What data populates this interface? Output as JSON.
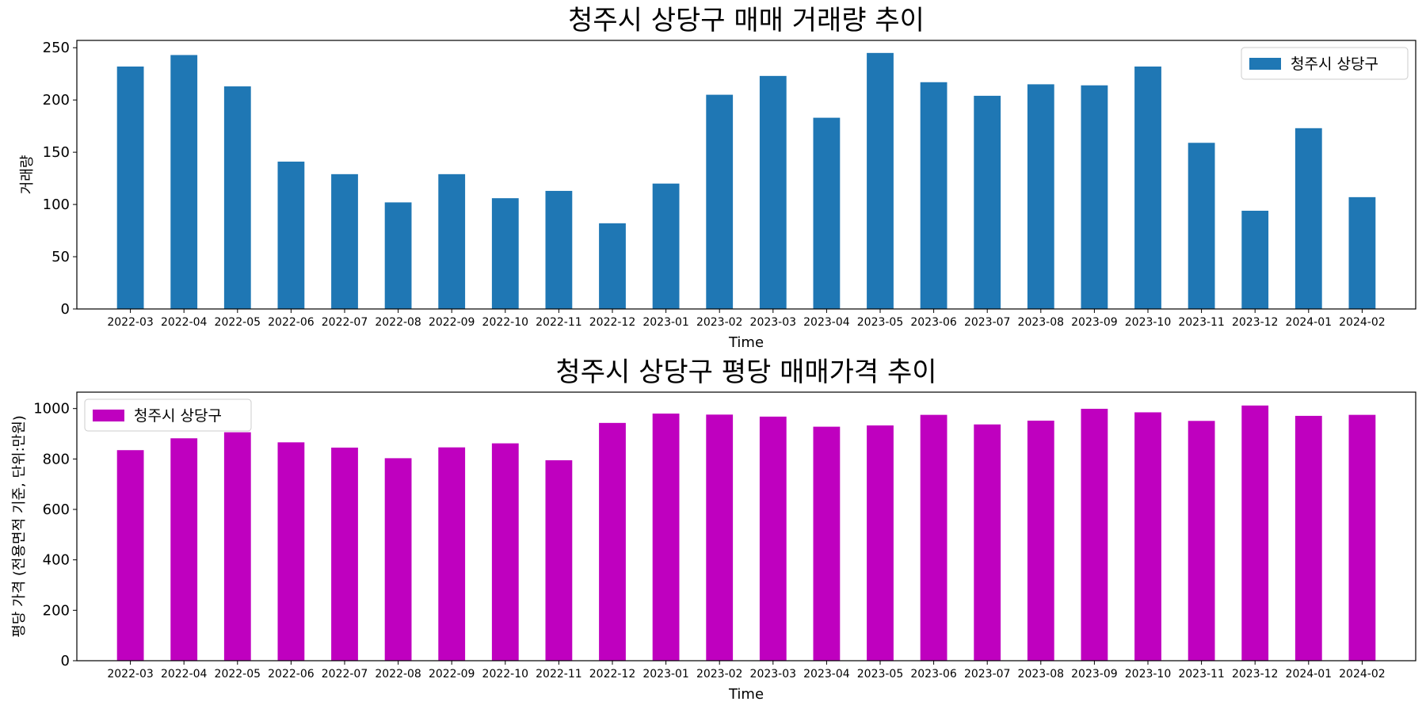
{
  "chart_data": [
    {
      "type": "bar",
      "title": "청주시 상당구 매매 거래량 추이",
      "xlabel": "Time",
      "ylabel": "거래량",
      "ylim": [
        0,
        257
      ],
      "yticks": [
        0,
        50,
        100,
        150,
        200,
        250
      ],
      "categories": [
        "2022-03",
        "2022-04",
        "2022-05",
        "2022-06",
        "2022-07",
        "2022-08",
        "2022-09",
        "2022-10",
        "2022-11",
        "2022-12",
        "2023-01",
        "2023-02",
        "2023-03",
        "2023-04",
        "2023-05",
        "2023-06",
        "2023-07",
        "2023-08",
        "2023-09",
        "2023-10",
        "2023-11",
        "2023-12",
        "2024-01",
        "2024-02"
      ],
      "series": [
        {
          "name": "청주시 상당구",
          "color": "#1f77b4",
          "values": [
            232,
            243,
            213,
            141,
            129,
            102,
            129,
            106,
            113,
            82,
            120,
            205,
            223,
            183,
            245,
            217,
            204,
            215,
            214,
            232,
            159,
            94,
            173,
            107
          ]
        }
      ],
      "grid": false,
      "legend": "upper right"
    },
    {
      "type": "bar",
      "title": "청주시 상당구 평당 매매가격 추이",
      "xlabel": "Time",
      "ylabel": "평당 가격 (전용면적 기준, 단위:만원)",
      "ylim": [
        0,
        1065
      ],
      "yticks": [
        0,
        200,
        400,
        600,
        800,
        1000
      ],
      "categories": [
        "2022-03",
        "2022-04",
        "2022-05",
        "2022-06",
        "2022-07",
        "2022-08",
        "2022-09",
        "2022-10",
        "2022-11",
        "2022-12",
        "2023-01",
        "2023-02",
        "2023-03",
        "2023-04",
        "2023-05",
        "2023-06",
        "2023-07",
        "2023-08",
        "2023-09",
        "2023-10",
        "2023-11",
        "2023-12",
        "2024-01",
        "2024-02"
      ],
      "series": [
        {
          "name": "청주시 상당구",
          "color": "#bf00bf",
          "values": [
            835,
            882,
            906,
            866,
            845,
            803,
            846,
            862,
            795,
            943,
            980,
            976,
            968,
            928,
            933,
            975,
            937,
            952,
            999,
            985,
            951,
            1012,
            971,
            975
          ]
        }
      ],
      "grid": false,
      "legend": "upper left"
    }
  ]
}
